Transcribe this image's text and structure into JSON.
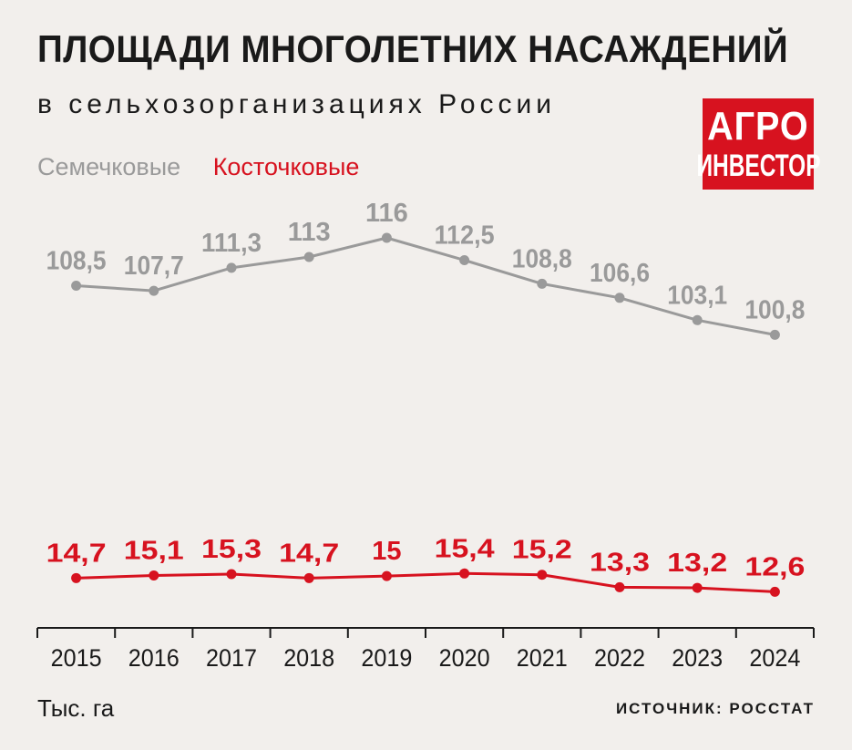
{
  "title": "ПЛОЩАДИ МНОГОЛЕТНИХ НАСАЖДЕНИЙ",
  "subtitle": "в сельхозорганизациях России",
  "logo": {
    "line1": "АГРО",
    "line2": "ИНВЕСТОР"
  },
  "unit": "Тыс. га",
  "source": "ИСТОЧНИК: РОССТАТ",
  "colors": {
    "grey": "#9a9a9a",
    "red": "#d7121f",
    "text": "#1a1a1a",
    "background": "#f2efec"
  },
  "chart_data": {
    "type": "line",
    "x": [
      "2015",
      "2016",
      "2017",
      "2018",
      "2019",
      "2020",
      "2021",
      "2022",
      "2023",
      "2024"
    ],
    "series": [
      {
        "name": "Семечковые",
        "color": "#9a9a9a",
        "values": [
          108.5,
          107.7,
          111.3,
          113,
          116,
          112.5,
          108.8,
          106.6,
          103.1,
          100.8
        ],
        "labels": [
          "108,5",
          "107,7",
          "111,3",
          "113",
          "116",
          "112,5",
          "108,8",
          "106,6",
          "103,1",
          "100,8"
        ]
      },
      {
        "name": "Косточковые",
        "color": "#d7121f",
        "values": [
          14.7,
          15.1,
          15.3,
          14.7,
          15,
          15.4,
          15.2,
          13.3,
          13.2,
          12.6
        ],
        "labels": [
          "14,7",
          "15,1",
          "15,3",
          "14,7",
          "15",
          "15,4",
          "15,2",
          "13,3",
          "13,2",
          "12,6"
        ]
      }
    ],
    "legend": "top-left",
    "grid": false
  }
}
